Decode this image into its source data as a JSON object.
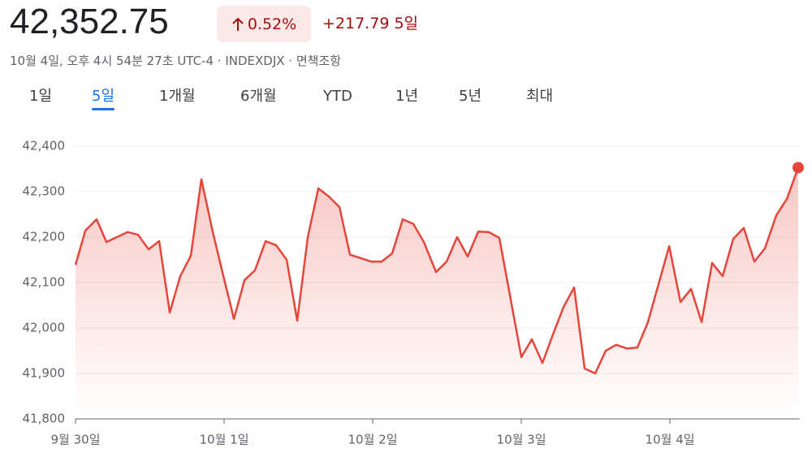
{
  "header": {
    "price": "42,352.75",
    "change_percent": "0.52%",
    "change": "+217.79 5일",
    "subtitle": "10월 4일, 오후 4시 54분 27초 UTC-4 · INDEXDJX · 면책조항"
  },
  "tabs": {
    "items": [
      "1일",
      "5일",
      "1개월",
      "6개월",
      "YTD",
      "1년",
      "5년",
      "최대"
    ],
    "selected": 1
  },
  "chart_data": {
    "type": "line",
    "color": "#e5453a",
    "grid": true,
    "x": [
      0,
      0.066,
      0.142,
      0.208,
      0.279,
      0.35,
      0.421,
      0.492,
      0.563,
      0.634,
      0.705,
      0.776,
      0.847,
      0.923,
      0.995,
      1.066,
      1.137,
      1.208,
      1.279,
      1.35,
      1.421,
      1.492,
      1.563,
      1.634,
      1.705,
      1.776,
      1.847,
      1.918,
      1.989,
      2.06,
      2.131,
      2.202,
      2.273,
      2.344,
      2.426,
      2.497,
      2.568,
      2.639,
      2.71,
      2.781,
      2.852,
      3.0,
      3.071,
      3.142,
      3.213,
      3.284,
      3.355,
      3.426,
      3.497,
      3.568,
      3.639,
      3.71,
      3.781,
      3.852,
      3.923,
      3.995,
      4.071,
      4.142,
      4.213,
      4.284,
      4.355,
      4.426,
      4.497,
      4.568,
      4.639,
      4.716,
      4.787,
      4.863
    ],
    "values": [
      42139,
      42214,
      42239,
      42189,
      42200,
      42211,
      42205,
      42173,
      42191,
      42034,
      42114,
      42159,
      42327,
      42212,
      42114,
      42020,
      42105,
      42127,
      42191,
      42182,
      42150,
      42016,
      42200,
      42307,
      42289,
      42266,
      42161,
      42154,
      42146,
      42146,
      42164,
      42239,
      42229,
      42189,
      42123,
      42146,
      42200,
      42157,
      42212,
      42211,
      42198,
      41936,
      41975,
      41923,
      41986,
      42046,
      42089,
      41911,
      41900,
      41950,
      41963,
      41955,
      41957,
      42013,
      42096,
      42180,
      42057,
      42086,
      42013,
      42143,
      42114,
      42196,
      42220,
      42146,
      42175,
      42248,
      42284,
      42352.75
    ],
    "xlim": [
      0,
      4.874
    ],
    "xticks": [
      {
        "value": 0,
        "label": "9월 30일"
      },
      {
        "value": 1,
        "label": "10월 1일"
      },
      {
        "value": 2,
        "label": "10월 2일"
      },
      {
        "value": 3,
        "label": "10월 3일"
      },
      {
        "value": 4,
        "label": "10월 4일"
      }
    ],
    "ylim": [
      41800,
      42400
    ],
    "yticks": [
      {
        "value": 41800,
        "label": "41,800"
      },
      {
        "value": 41900,
        "label": "41,900"
      },
      {
        "value": 42000,
        "label": "42,000"
      },
      {
        "value": 42100,
        "label": "42,100"
      },
      {
        "value": 42200,
        "label": "42,200"
      },
      {
        "value": 42300,
        "label": "42,300"
      },
      {
        "value": 42400,
        "label": "42,400"
      }
    ]
  }
}
